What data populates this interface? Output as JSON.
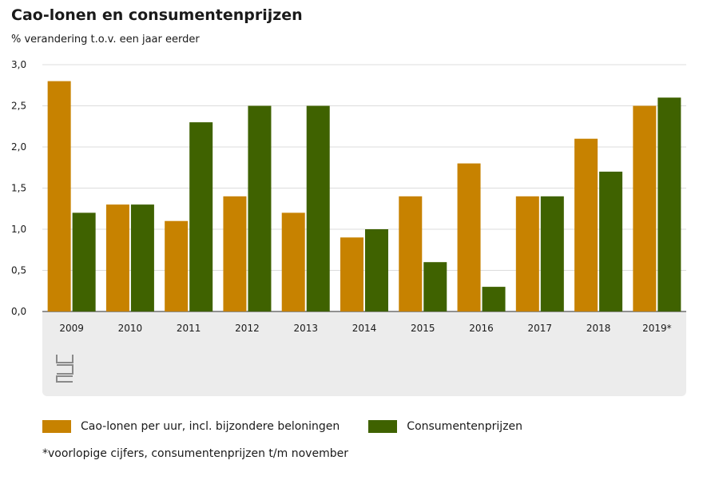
{
  "chart_data": {
    "type": "bar",
    "title": "Cao-lonen en consumentenprijzen",
    "subtitle": "% verandering t.o.v. een jaar eerder",
    "categories": [
      "2009",
      "2010",
      "2011",
      "2012",
      "2013",
      "2014",
      "2015",
      "2016",
      "2017",
      "2018",
      "2019*"
    ],
    "series": [
      {
        "name": "Cao-lonen per uur, incl. bijzondere beloningen",
        "color": "#c78200",
        "values": [
          2.8,
          1.3,
          1.1,
          1.4,
          1.2,
          0.9,
          1.4,
          1.8,
          1.4,
          2.1,
          2.5
        ]
      },
      {
        "name": "Consumentenprijzen",
        "color": "#3f6200",
        "values": [
          1.2,
          1.3,
          2.3,
          2.5,
          2.5,
          1.0,
          0.6,
          0.3,
          1.4,
          1.7,
          2.6
        ]
      }
    ],
    "ylim": [
      0,
      3.0
    ],
    "yticks": [
      "0,0",
      "0,5",
      "1,0",
      "1,5",
      "2,0",
      "2,5",
      "3,0"
    ],
    "grid": true,
    "legend_position": "bottom"
  },
  "footnote": "*voorlopige cijfers, consumentenprijzen t/m november",
  "logo_text": "cbs"
}
